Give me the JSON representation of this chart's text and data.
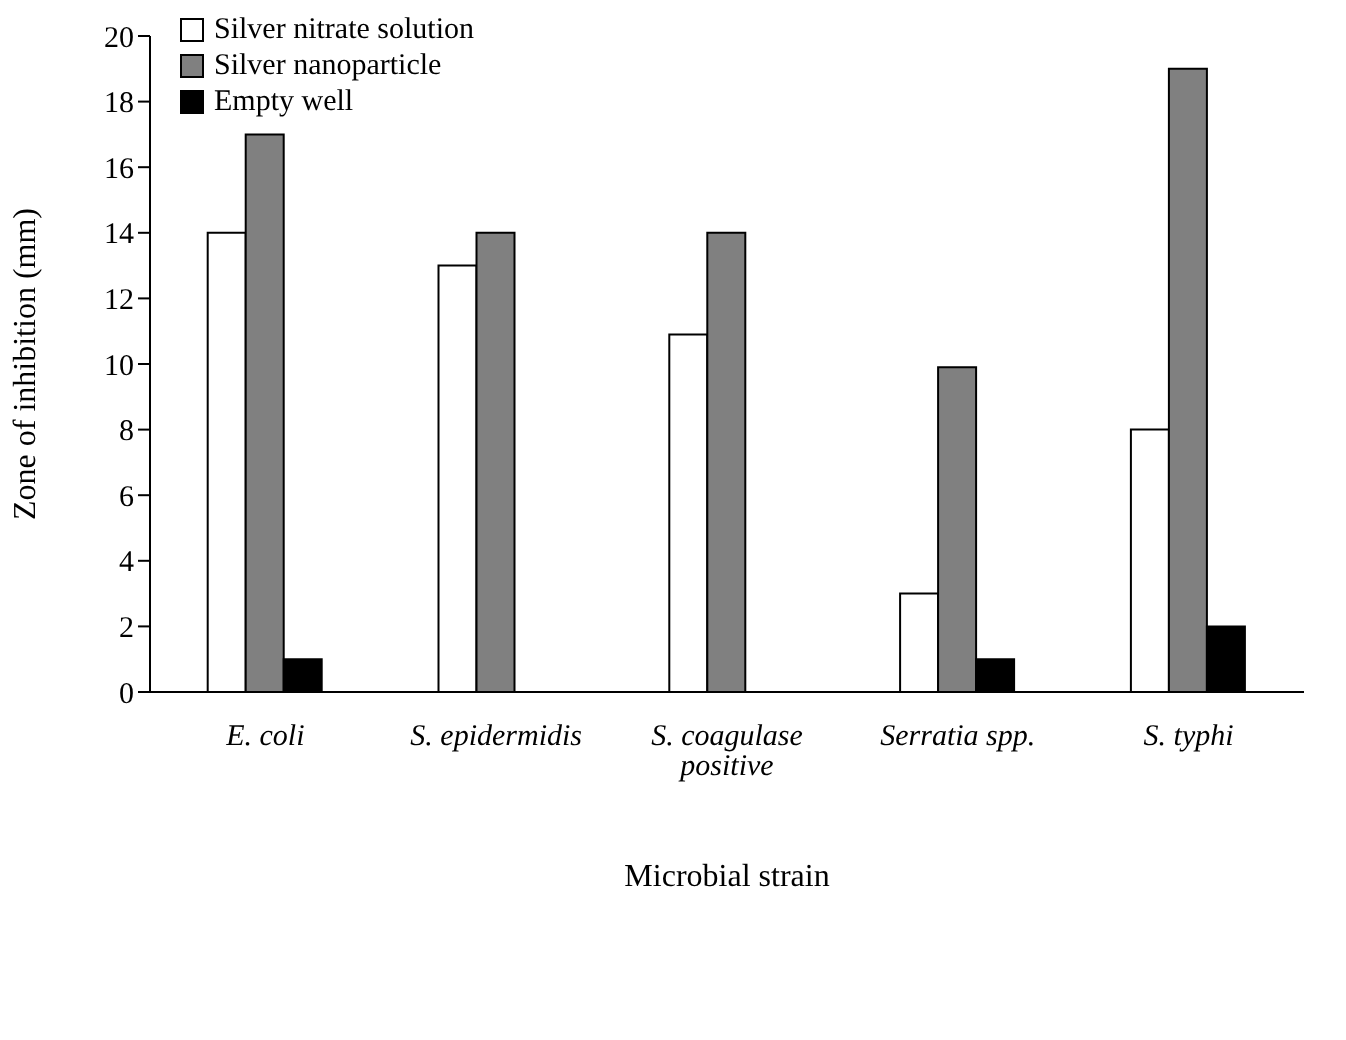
{
  "chart_data": {
    "type": "bar",
    "xlabel": "Microbial strain",
    "ylabel": "Zone of inhibition (mm)",
    "categories": [
      "E. coli",
      "S. epidermidis",
      "S. coagulase positive",
      "Serratia spp.",
      "S. typhi"
    ],
    "series": [
      {
        "name": "Silver nitrate solution",
        "color": "#ffffff",
        "values": [
          14,
          13,
          10.9,
          3,
          8
        ]
      },
      {
        "name": "Silver nanoparticle",
        "color": "#808080",
        "values": [
          17,
          14,
          14,
          9.9,
          19
        ]
      },
      {
        "name": "Empty well",
        "color": "#000000",
        "values": [
          1,
          null,
          null,
          1,
          2
        ]
      }
    ],
    "ylim": [
      0,
      20
    ],
    "yticks": [
      0,
      2,
      4,
      6,
      8,
      10,
      12,
      14,
      16,
      18,
      20
    ],
    "grid": false,
    "legend": "top left"
  }
}
